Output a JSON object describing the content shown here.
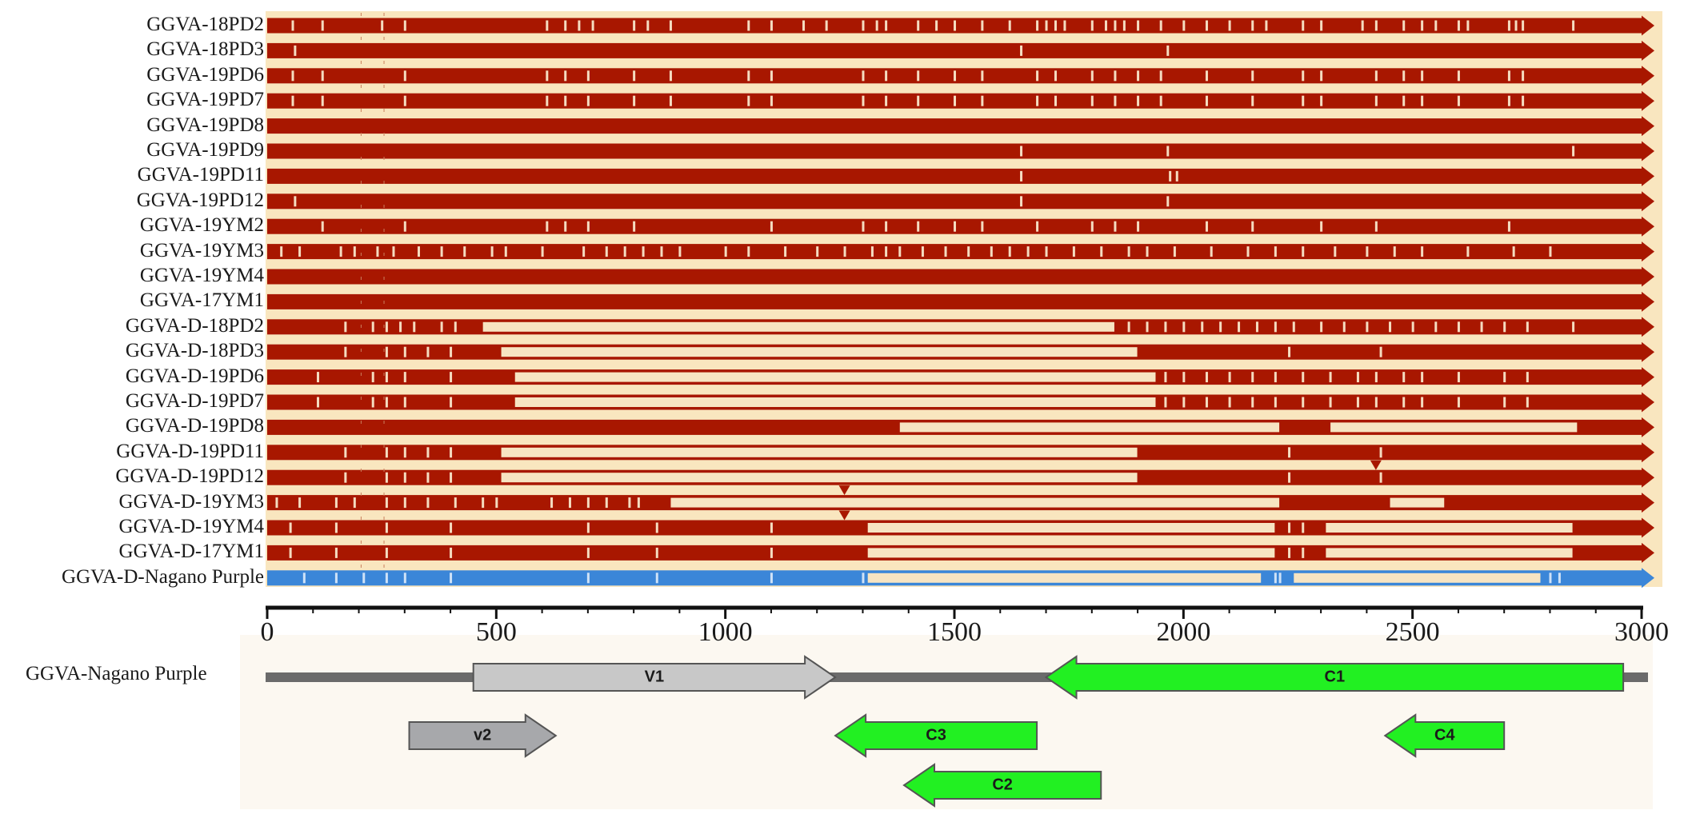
{
  "colors": {
    "panel_bg": "#f9e6bf",
    "map_bg": "#fcf8f1",
    "track": "#a81700",
    "gap": "#f7e4c2",
    "reference_track": "#3b86d8",
    "gene_green": "#22f022",
    "gene_light_gray": "#c8c8c8",
    "gene_dark_gray": "#a7a8ab",
    "backbone": "#6b6b6b",
    "axis": "#111111"
  },
  "alignment": {
    "genome_length": 3000,
    "sequences": [
      {
        "label": "GGVA-18PD2",
        "gaps": [],
        "snps": [
          55,
          120,
          250,
          300,
          610,
          650,
          680,
          710,
          800,
          830,
          880,
          1050,
          1100,
          1170,
          1220,
          1300,
          1330,
          1350,
          1420,
          1460,
          1500,
          1560,
          1620,
          1680,
          1700,
          1720,
          1740,
          1800,
          1830,
          1850,
          1870,
          1900,
          1950,
          2000,
          2050,
          2100,
          2150,
          2180,
          2260,
          2300,
          2390,
          2420,
          2480,
          2520,
          2550,
          2600,
          2620,
          2710,
          2725,
          2740,
          2850
        ]
      },
      {
        "label": "GGVA-18PD3",
        "gaps": [],
        "snps": [
          60,
          1645,
          1965
        ]
      },
      {
        "label": "GGVA-19PD6",
        "gaps": [],
        "snps": [
          55,
          120,
          300,
          610,
          650,
          700,
          800,
          880,
          1050,
          1100,
          1300,
          1350,
          1420,
          1500,
          1560,
          1680,
          1720,
          1800,
          1850,
          1900,
          1950,
          2050,
          2150,
          2260,
          2300,
          2420,
          2480,
          2520,
          2600,
          2710,
          2740
        ]
      },
      {
        "label": "GGVA-19PD7",
        "gaps": [],
        "snps": [
          55,
          120,
          300,
          610,
          650,
          700,
          800,
          880,
          1050,
          1100,
          1300,
          1350,
          1420,
          1500,
          1560,
          1680,
          1720,
          1800,
          1850,
          1900,
          1950,
          2050,
          2150,
          2260,
          2300,
          2420,
          2480,
          2520,
          2600,
          2710,
          2740
        ]
      },
      {
        "label": "GGVA-19PD8",
        "gaps": [],
        "snps": []
      },
      {
        "label": "GGVA-19PD9",
        "gaps": [],
        "snps": [
          1645,
          1965,
          2850
        ]
      },
      {
        "label": "GGVA-19PD11",
        "gaps": [],
        "snps": [
          1645,
          1970,
          1985
        ]
      },
      {
        "label": "GGVA-19PD12",
        "gaps": [],
        "snps": [
          60,
          1645,
          1965
        ]
      },
      {
        "label": "GGVA-19YM2",
        "gaps": [],
        "snps": [
          120,
          300,
          610,
          650,
          700,
          800,
          1100,
          1300,
          1350,
          1420,
          1500,
          1560,
          1680,
          1800,
          1850,
          1900,
          2050,
          2150,
          2300,
          2420,
          2710
        ]
      },
      {
        "label": "GGVA-19YM3",
        "gaps": [],
        "snps": [
          30,
          70,
          160,
          190,
          240,
          275,
          330,
          380,
          430,
          490,
          520,
          600,
          690,
          740,
          780,
          820,
          860,
          900,
          1000,
          1050,
          1130,
          1200,
          1260,
          1320,
          1350,
          1380,
          1430,
          1480,
          1530,
          1580,
          1620,
          1660,
          1700,
          1760,
          1820,
          1880,
          1920,
          1980,
          2060,
          2140,
          2200,
          2260,
          2330,
          2400,
          2460,
          2520,
          2620,
          2720,
          2800
        ]
      },
      {
        "label": "GGVA-19YM4",
        "gaps": [],
        "snps": []
      },
      {
        "label": "GGVA-17YM1",
        "gaps": [],
        "snps": []
      },
      {
        "label": "GGVA-D-18PD2",
        "gaps": [
          [
            470,
            1850
          ]
        ],
        "snps": [
          170,
          230,
          260,
          290,
          320,
          380,
          410,
          1880,
          1920,
          1960,
          2000,
          2040,
          2080,
          2120,
          2160,
          2200,
          2240,
          2300,
          2350,
          2400,
          2450,
          2500,
          2550,
          2600,
          2650,
          2700,
          2750,
          2850
        ]
      },
      {
        "label": "GGVA-D-18PD3",
        "gaps": [
          [
            510,
            1900
          ]
        ],
        "snps": [
          170,
          260,
          300,
          350,
          400,
          2230,
          2430
        ]
      },
      {
        "label": "GGVA-D-19PD6",
        "gaps": [
          [
            540,
            1940
          ]
        ],
        "snps": [
          110,
          230,
          260,
          300,
          400,
          1960,
          2000,
          2050,
          2100,
          2150,
          2200,
          2260,
          2320,
          2380,
          2420,
          2480,
          2520,
          2600,
          2700,
          2750
        ]
      },
      {
        "label": "GGVA-D-19PD7",
        "gaps": [
          [
            540,
            1940
          ]
        ],
        "snps": [
          110,
          230,
          260,
          300,
          400,
          1960,
          2000,
          2050,
          2100,
          2150,
          2200,
          2260,
          2320,
          2380,
          2420,
          2480,
          2520,
          2600,
          2700,
          2750
        ]
      },
      {
        "label": "GGVA-D-19PD8",
        "gaps": [
          [
            1380,
            2210
          ],
          [
            2320,
            2860
          ]
        ],
        "snps": []
      },
      {
        "label": "GGVA-D-19PD11",
        "gaps": [
          [
            510,
            1900
          ]
        ],
        "snps": [
          170,
          260,
          300,
          350,
          400,
          2230,
          2430
        ]
      },
      {
        "label": "GGVA-D-19PD12",
        "gaps": [
          [
            510,
            1900
          ]
        ],
        "snps": [
          170,
          260,
          300,
          350,
          400,
          2230,
          2430
        ]
      },
      {
        "label": "GGVA-D-19YM3",
        "gaps": [
          [
            880,
            2210
          ],
          [
            2450,
            2570
          ]
        ],
        "snps": [
          20,
          70,
          150,
          190,
          260,
          300,
          350,
          410,
          470,
          500,
          620,
          660,
          700,
          740,
          790,
          810
        ]
      },
      {
        "label": "GGVA-D-19YM4",
        "gaps": [
          [
            1310,
            2200
          ],
          [
            2310,
            2850
          ]
        ],
        "snps": [
          50,
          150,
          260,
          400,
          700,
          850,
          1100,
          2230,
          2260
        ]
      },
      {
        "label": "GGVA-D-17YM1",
        "gaps": [
          [
            1310,
            2200
          ],
          [
            2310,
            2850
          ]
        ],
        "snps": [
          50,
          150,
          260,
          400,
          700,
          850,
          1100,
          2230,
          2260
        ]
      },
      {
        "label": "GGVA-D-Nagano Purple",
        "reference": true,
        "gaps": [
          [
            1310,
            2170
          ],
          [
            2240,
            2780
          ]
        ],
        "snps": [
          80,
          150,
          210,
          260,
          300,
          400,
          700,
          850,
          1100,
          1300,
          2200,
          2210,
          2800,
          2820
        ]
      }
    ]
  },
  "axis": {
    "min": 0,
    "max": 3000,
    "ticks": [
      {
        "value": 0,
        "label": "0"
      },
      {
        "value": 500,
        "label": "500"
      },
      {
        "value": 1000,
        "label": "1000"
      },
      {
        "value": 1500,
        "label": "1500"
      },
      {
        "value": 2000,
        "label": "2000"
      },
      {
        "value": 2500,
        "label": "2500"
      },
      {
        "value": 3000,
        "label": "3000"
      }
    ]
  },
  "genome_map": {
    "label": "GGVA-Nagano Purple",
    "genes": [
      {
        "name": "V1",
        "start": 450,
        "end": 1240,
        "strand": "+",
        "lane": 0,
        "color": "#c8c8c8"
      },
      {
        "name": "C1",
        "start": 1700,
        "end": 2960,
        "strand": "-",
        "lane": 0,
        "color": "#22f022"
      },
      {
        "name": "v2",
        "start": 310,
        "end": 630,
        "strand": "+",
        "lane": 1,
        "color": "#a7a8ab"
      },
      {
        "name": "C3",
        "start": 1240,
        "end": 1680,
        "strand": "-",
        "lane": 1,
        "color": "#22f022"
      },
      {
        "name": "C4",
        "start": 2440,
        "end": 2700,
        "strand": "-",
        "lane": 1,
        "color": "#22f022"
      },
      {
        "name": "C2",
        "start": 1390,
        "end": 1820,
        "strand": "-",
        "lane": 2,
        "color": "#22f022"
      }
    ]
  }
}
